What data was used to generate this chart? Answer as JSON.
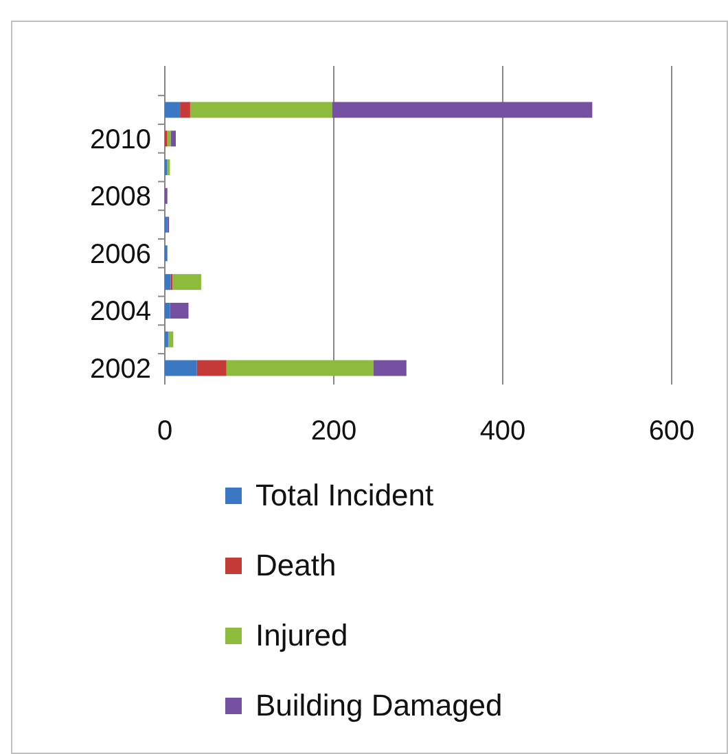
{
  "chart_data": {
    "type": "bar",
    "orientation": "horizontal",
    "stacked": true,
    "categories": [
      null,
      "2010",
      null,
      "2008",
      null,
      "2006",
      null,
      "2004",
      null,
      "2002"
    ],
    "series": [
      {
        "name": "Total Incident",
        "color": "#3a78c4",
        "values": [
          18,
          0,
          3,
          0,
          3,
          3,
          7,
          6,
          4,
          38
        ]
      },
      {
        "name": "Death",
        "color": "#c33a37",
        "values": [
          12,
          3,
          0,
          0,
          0,
          0,
          2,
          0,
          0,
          35
        ]
      },
      {
        "name": "Injured",
        "color": "#8cbb3e",
        "values": [
          168,
          4,
          3,
          0,
          0,
          0,
          34,
          0,
          6,
          174
        ]
      },
      {
        "name": "Building Damaged",
        "color": "#7650a0",
        "values": [
          308,
          6,
          0,
          3,
          2,
          0,
          0,
          22,
          0,
          39
        ]
      }
    ],
    "xlim": [
      0,
      600
    ],
    "xticks": [
      0,
      200,
      400,
      600
    ],
    "grid": "x",
    "legend": "bottom"
  }
}
